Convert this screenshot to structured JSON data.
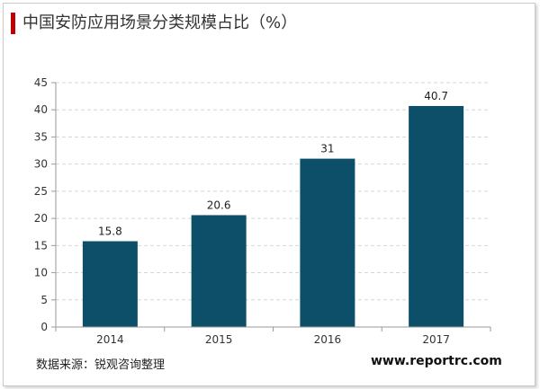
{
  "header": {
    "title": "中国安防应用场景分类规模占比（%）",
    "accent_color": "#c00000"
  },
  "footer": {
    "source": "数据来源：锐观咨询整理",
    "website": "www.reportrc.com"
  },
  "chart_data": {
    "type": "bar",
    "title": "中国安防应用场景分类规模占比（%）",
    "xlabel": "",
    "ylabel": "",
    "categories": [
      "2014",
      "2015",
      "2016",
      "2017"
    ],
    "values": [
      15.8,
      20.6,
      31,
      40.7
    ],
    "data_labels": [
      "15.8",
      "20.6",
      "31",
      "40.7"
    ],
    "ylim": [
      0,
      45
    ],
    "yticks": [
      "0",
      "5",
      "10",
      "15",
      "20",
      "25",
      "30",
      "35",
      "40",
      "45"
    ],
    "grid": true,
    "legend": "none",
    "bar_color": "#0d4f69"
  }
}
